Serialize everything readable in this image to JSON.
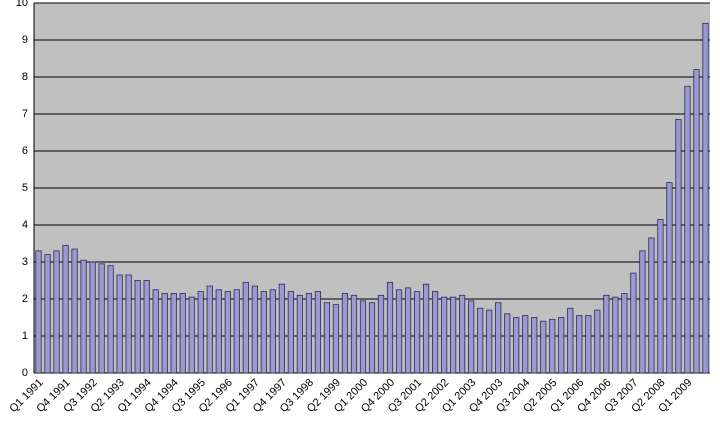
{
  "chart_data": {
    "type": "bar",
    "categories": [
      "Q1 1991",
      null,
      null,
      "Q4 1991",
      null,
      null,
      "Q3 1992",
      null,
      null,
      "Q2 1993",
      null,
      null,
      "Q1 1994",
      null,
      null,
      "Q4 1994",
      null,
      null,
      "Q3 1995",
      null,
      null,
      "Q2 1996",
      null,
      null,
      "Q1 1997",
      null,
      null,
      "Q4 1997",
      null,
      null,
      "Q3 1998",
      null,
      null,
      "Q2 1999",
      null,
      null,
      "Q1 2000",
      null,
      null,
      "Q4 2000",
      null,
      null,
      "Q3 2001",
      null,
      null,
      "Q2 2002",
      null,
      null,
      "Q1 2003",
      null,
      null,
      "Q4 2003",
      null,
      null,
      "Q3 2004",
      null,
      null,
      "Q2 2005",
      null,
      null,
      "Q1 2006",
      null,
      null,
      "Q4 2006",
      null,
      null,
      "Q3 2007",
      null,
      null,
      "Q2 2008",
      null,
      null,
      "Q1 2009",
      null,
      null
    ],
    "values": [
      3.3,
      3.2,
      3.3,
      3.45,
      3.35,
      3.05,
      3.0,
      2.95,
      2.9,
      2.65,
      2.65,
      2.5,
      2.5,
      2.25,
      2.15,
      2.15,
      2.15,
      2.05,
      2.2,
      2.35,
      2.25,
      2.2,
      2.25,
      2.45,
      2.35,
      2.2,
      2.25,
      2.4,
      2.2,
      2.1,
      2.15,
      2.2,
      1.9,
      1.85,
      2.15,
      2.1,
      1.95,
      1.9,
      2.1,
      2.45,
      2.25,
      2.3,
      2.2,
      2.4,
      2.2,
      2.05,
      2.05,
      2.1,
      1.95,
      1.75,
      1.7,
      1.9,
      1.6,
      1.5,
      1.55,
      1.5,
      1.4,
      1.45,
      1.5,
      1.75,
      1.55,
      1.55,
      1.7,
      2.1,
      2.05,
      2.15,
      2.7,
      3.3,
      3.65,
      4.15,
      5.15,
      6.85,
      7.75,
      8.2,
      9.45
    ],
    "color": "#9a9ad0",
    "ylim": [
      0,
      10
    ],
    "yticks": [
      0,
      1,
      2,
      3,
      4,
      5,
      6,
      7,
      8,
      9,
      10
    ],
    "grid": true
  }
}
